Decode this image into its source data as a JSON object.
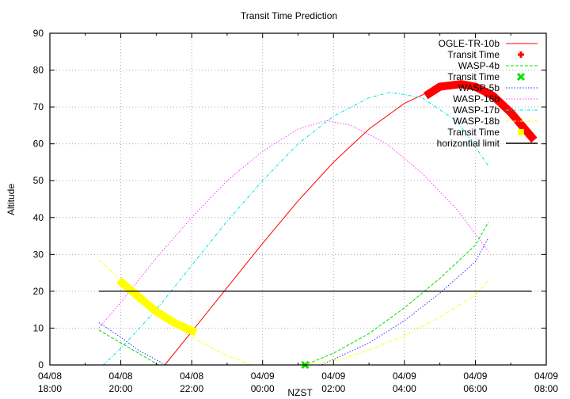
{
  "chart_data": {
    "type": "line",
    "title": "Transit Time Prediction",
    "xlabel": "NZST",
    "ylabel": "Altitude",
    "ylim": [
      0,
      90
    ],
    "xlim_hours_from_start": [
      0,
      14
    ],
    "grid": true,
    "legend_position": "top-right inside",
    "y_ticks": [
      "0",
      "10",
      "20",
      "30",
      "40",
      "50",
      "60",
      "70",
      "80",
      "90"
    ],
    "x_ticks": [
      {
        "date": "04/08",
        "time": "18:00"
      },
      {
        "date": "04/08",
        "time": "20:00"
      },
      {
        "date": "04/08",
        "time": "22:00"
      },
      {
        "date": "04/09",
        "time": "00:00"
      },
      {
        "date": "04/09",
        "time": "02:00"
      },
      {
        "date": "04/09",
        "time": "04:00"
      },
      {
        "date": "04/09",
        "time": "06:00"
      },
      {
        "date": "04/09",
        "time": "08:00"
      }
    ],
    "x_unit_note": "x values are hours after 04/08 18:00 NZST",
    "series": [
      {
        "name": "OGLE-TR-10b",
        "color": "#ff0000",
        "dash": "solid",
        "points": [
          [
            3.24,
            0
          ],
          [
            4,
            9
          ],
          [
            5,
            21
          ],
          [
            6,
            33
          ],
          [
            7,
            44.5
          ],
          [
            8,
            55
          ],
          [
            9,
            64
          ],
          [
            10,
            71
          ],
          [
            11,
            75.5
          ],
          [
            11.6,
            76.2
          ],
          [
            12,
            75.5
          ],
          [
            12.5,
            73
          ],
          [
            13,
            68.5
          ],
          [
            13.66,
            61
          ]
        ]
      },
      {
        "name": "Transit Time",
        "color": "#ff0000",
        "marker": "plus",
        "thick": true,
        "points": [
          [
            10.6,
            73
          ],
          [
            11,
            75.5
          ],
          [
            11.6,
            76.2
          ],
          [
            12,
            75.5
          ],
          [
            12.5,
            73
          ],
          [
            13,
            68.5
          ],
          [
            13.66,
            61
          ]
        ]
      },
      {
        "name": "WASP-4b",
        "color": "#00e000",
        "dash": "dashed",
        "points": [
          [
            1.38,
            9.5
          ],
          [
            2,
            6
          ],
          [
            2.5,
            3.2
          ],
          [
            3.06,
            0
          ],
          [
            7.2,
            0
          ],
          [
            8,
            3.2
          ],
          [
            9,
            8.5
          ],
          [
            10,
            15.5
          ],
          [
            11,
            23.5
          ],
          [
            12,
            32.5
          ],
          [
            12.37,
            38.8
          ]
        ]
      },
      {
        "name": "Transit Time",
        "color": "#00e000",
        "marker": "cross",
        "points": [
          [
            7.2,
            0
          ]
        ]
      },
      {
        "name": "WASP-5b",
        "color": "#3030ff",
        "dash": "dotted",
        "points": [
          [
            1.38,
            11.5
          ],
          [
            2,
            7.5
          ],
          [
            2.5,
            4
          ],
          [
            3.27,
            0
          ],
          [
            7.65,
            0
          ],
          [
            8,
            1.5
          ],
          [
            9,
            6
          ],
          [
            10,
            12
          ],
          [
            11,
            19.5
          ],
          [
            12,
            28
          ],
          [
            12.37,
            34.5
          ]
        ]
      },
      {
        "name": "WASP-16b",
        "color": "#ff40ff",
        "dash": "dotted",
        "points": [
          [
            1.38,
            10
          ],
          [
            2,
            17
          ],
          [
            3,
            29
          ],
          [
            4,
            40
          ],
          [
            5,
            50
          ],
          [
            6,
            58
          ],
          [
            7,
            64
          ],
          [
            7.8,
            66.3
          ],
          [
            8.5,
            65
          ],
          [
            9.5,
            60
          ],
          [
            10.5,
            52
          ],
          [
            11.5,
            42
          ],
          [
            12.37,
            30.8
          ]
        ]
      },
      {
        "name": "WASP-17b",
        "color": "#00e0e0",
        "dash": "dash-dot",
        "points": [
          [
            1.5,
            0
          ],
          [
            2,
            4.5
          ],
          [
            3,
            15
          ],
          [
            4,
            27
          ],
          [
            5,
            39
          ],
          [
            6,
            50
          ],
          [
            7,
            60
          ],
          [
            8,
            67.5
          ],
          [
            9,
            72.5
          ],
          [
            9.6,
            74
          ],
          [
            10.5,
            72.5
          ],
          [
            11.5,
            66
          ],
          [
            12.37,
            54
          ]
        ]
      },
      {
        "name": "WASP-18b",
        "color": "#ffff00",
        "dash": "dash-dot",
        "points": [
          [
            1.38,
            28.5
          ],
          [
            2,
            23
          ],
          [
            3,
            14.5
          ],
          [
            4,
            7.5
          ],
          [
            5,
            2.5
          ],
          [
            5.7,
            0
          ],
          [
            7,
            0
          ],
          [
            8,
            1
          ],
          [
            9,
            4
          ],
          [
            10,
            8
          ],
          [
            11,
            13
          ],
          [
            12,
            19
          ],
          [
            12.37,
            23
          ]
        ]
      },
      {
        "name": "Transit Time",
        "color": "#ffff00",
        "marker": "square",
        "thick": true,
        "points": [
          [
            1.95,
            23
          ],
          [
            2.5,
            18.5
          ],
          [
            3,
            14.5
          ],
          [
            3.5,
            11.5
          ],
          [
            4.12,
            8.8
          ]
        ]
      },
      {
        "name": "horizontial limit",
        "color": "#000000",
        "dash": "solid",
        "points": [
          [
            1.38,
            20
          ],
          [
            13.59,
            20
          ]
        ]
      }
    ]
  },
  "legend": {
    "items": [
      {
        "label": "OGLE-TR-10b"
      },
      {
        "label": "Transit Time"
      },
      {
        "label": "WASP-4b"
      },
      {
        "label": "Transit Time"
      },
      {
        "label": "WASP-5b"
      },
      {
        "label": "WASP-16b"
      },
      {
        "label": "WASP-17b"
      },
      {
        "label": "WASP-18b"
      },
      {
        "label": "Transit Time"
      },
      {
        "label": "horizontial limit"
      }
    ]
  }
}
